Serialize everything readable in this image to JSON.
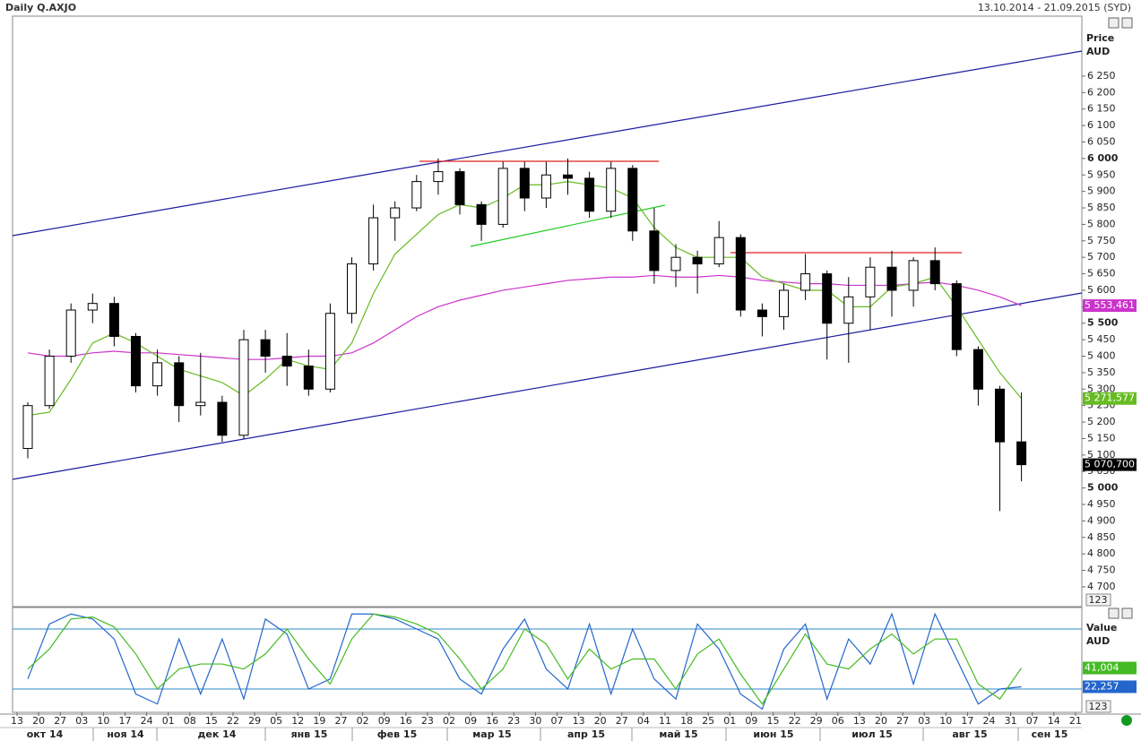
{
  "chart_data": [
    {
      "type": "candlestick",
      "title": "Daily Q.AXJO",
      "subtitle": "13.10.2014 - 21.09.2015 (SYD)",
      "y_label": "Price",
      "y_unit": "AUD",
      "y_button": "123",
      "categories": [
        "13",
        "20",
        "27",
        "03",
        "10",
        "17",
        "24",
        "01",
        "08",
        "15",
        "22",
        "29",
        "05",
        "12",
        "19",
        "27",
        "02",
        "09",
        "16",
        "23",
        "02",
        "09",
        "16",
        "23",
        "30",
        "07",
        "13",
        "20",
        "27",
        "04",
        "11",
        "18",
        "25",
        "01",
        "09",
        "15",
        "22",
        "29",
        "06",
        "13",
        "20",
        "27",
        "03",
        "10",
        "17",
        "24",
        "31",
        "07",
        "14",
        "21"
      ],
      "months": [
        "окт 14",
        "ноя 14",
        "дек 14",
        "янв 15",
        "фев 15",
        "мар 15",
        "апр 15",
        "май 15",
        "июн 15",
        "июл 15",
        "авг 15",
        "сен 15"
      ],
      "open": [
        5120,
        5250,
        5400,
        5540,
        5560,
        5460,
        5310,
        5380,
        5250,
        5260,
        5160,
        5450,
        5400,
        5370,
        5300,
        5530,
        5680,
        5820,
        5850,
        5930,
        5960,
        5860,
        5800,
        5970,
        5880,
        5950,
        5940,
        5840,
        5970,
        5780,
        5660,
        5700,
        5680,
        5760,
        5540,
        5520,
        5600,
        5650,
        5500,
        5580,
        5670,
        5600,
        5690,
        5620,
        5420,
        5300,
        5140,
        null,
        null,
        null
      ],
      "high": [
        5260,
        5420,
        5560,
        5590,
        5580,
        5470,
        5420,
        5400,
        5410,
        5280,
        5480,
        5480,
        5470,
        5420,
        5560,
        5700,
        5860,
        5870,
        5950,
        6000,
        5970,
        5870,
        5990,
        5990,
        5990,
        6000,
        5960,
        5990,
        5980,
        5850,
        5740,
        5720,
        5810,
        5770,
        5560,
        5620,
        5710,
        5660,
        5640,
        5700,
        5720,
        5700,
        5730,
        5630,
        5430,
        5310,
        5290,
        null,
        null,
        null
      ],
      "low": [
        5090,
        5240,
        5380,
        5500,
        5430,
        5290,
        5280,
        5200,
        5220,
        5140,
        5150,
        5350,
        5310,
        5280,
        5290,
        5500,
        5660,
        5750,
        5840,
        5890,
        5830,
        5750,
        5790,
        5840,
        5850,
        5890,
        5820,
        5820,
        5750,
        5620,
        5610,
        5590,
        5670,
        5520,
        5460,
        5480,
        5570,
        5390,
        5380,
        5480,
        5520,
        5550,
        5600,
        5400,
        5250,
        4930,
        5020,
        null,
        null,
        null
      ],
      "close": [
        5250,
        5400,
        5540,
        5560,
        5460,
        5310,
        5380,
        5250,
        5260,
        5160,
        5450,
        5400,
        5370,
        5300,
        5530,
        5680,
        5820,
        5850,
        5930,
        5960,
        5860,
        5800,
        5970,
        5880,
        5950,
        5940,
        5840,
        5970,
        5780,
        5660,
        5700,
        5680,
        5760,
        5540,
        5520,
        5600,
        5650,
        5500,
        5580,
        5670,
        5600,
        5690,
        5620,
        5420,
        5300,
        5140,
        5070.7,
        null,
        null,
        null
      ],
      "close_labels": [
        null,
        null,
        null,
        null,
        null,
        null,
        null,
        null,
        null,
        null,
        null,
        null,
        null,
        null,
        null,
        null,
        null,
        null,
        null,
        null,
        null,
        null,
        null,
        null,
        null,
        null,
        null,
        null,
        null,
        null,
        null,
        null,
        null,
        null,
        null,
        null,
        null,
        null,
        null,
        null,
        null,
        null,
        null,
        null,
        null,
        null,
        "5 070,700",
        null,
        null,
        null
      ],
      "series": [
        {
          "color": "#cc33cc",
          "values": [
            5410,
            5400,
            5400,
            5410,
            5415,
            5410,
            5410,
            5405,
            5400,
            5395,
            5390,
            5390,
            5395,
            5400,
            5400,
            5410,
            5440,
            5480,
            5520,
            5550,
            5570,
            5585,
            5600,
            5610,
            5620,
            5630,
            5635,
            5640,
            5640,
            5645,
            5640,
            5640,
            5645,
            5640,
            5630,
            5625,
            5620,
            5620,
            5615,
            5615,
            5615,
            5620,
            5625,
            5615,
            5600,
            5580,
            5553.461,
            null,
            null,
            null
          ],
          "value_labels": [
            null,
            null,
            null,
            null,
            null,
            null,
            null,
            null,
            null,
            null,
            null,
            null,
            null,
            null,
            null,
            null,
            null,
            null,
            null,
            null,
            null,
            null,
            null,
            null,
            null,
            null,
            null,
            null,
            null,
            null,
            null,
            null,
            null,
            null,
            null,
            null,
            null,
            null,
            null,
            null,
            null,
            null,
            null,
            null,
            null,
            null,
            "5 553,461",
            null,
            null,
            null
          ]
        },
        {
          "color": "#66bb22",
          "values": [
            5220,
            5230,
            5330,
            5440,
            5470,
            5440,
            5400,
            5360,
            5340,
            5320,
            5280,
            5330,
            5390,
            5370,
            5360,
            5440,
            5590,
            5710,
            5770,
            5830,
            5860,
            5850,
            5880,
            5920,
            5920,
            5930,
            5920,
            5910,
            5880,
            5790,
            5730,
            5700,
            5700,
            5700,
            5640,
            5620,
            5600,
            5600,
            5550,
            5550,
            5610,
            5620,
            5640,
            5550,
            5450,
            5350,
            5271.577,
            null,
            null,
            null
          ],
          "value_labels": [
            null,
            null,
            null,
            null,
            null,
            null,
            null,
            null,
            null,
            null,
            null,
            null,
            null,
            null,
            null,
            null,
            null,
            null,
            null,
            null,
            null,
            null,
            null,
            null,
            null,
            null,
            null,
            null,
            null,
            null,
            null,
            null,
            null,
            null,
            null,
            null,
            null,
            null,
            null,
            null,
            null,
            null,
            null,
            null,
            null,
            null,
            "5 271,577",
            null,
            null,
            null
          ]
        }
      ],
      "ylim": [
        4640,
        6432
      ],
      "yticks": [
        {
          "value": 4700,
          "label": "4 700"
        },
        {
          "value": 4750,
          "label": "4 750"
        },
        {
          "value": 4800,
          "label": "4 800"
        },
        {
          "value": 4850,
          "label": "4 850"
        },
        {
          "value": 4900,
          "label": "4 900"
        },
        {
          "value": 4950,
          "label": "4 950"
        },
        {
          "value": 5000,
          "label": "5 000"
        },
        {
          "value": 5050,
          "label": "5 050"
        },
        {
          "value": 5100,
          "label": "5 100"
        },
        {
          "value": 5150,
          "label": "5 150"
        },
        {
          "value": 5200,
          "label": "5 200"
        },
        {
          "value": 5250,
          "label": "5 250"
        },
        {
          "value": 5300,
          "label": "5 300"
        },
        {
          "value": 5350,
          "label": "5 350"
        },
        {
          "value": 5400,
          "label": "5 400"
        },
        {
          "value": 5450,
          "label": "5 450"
        },
        {
          "value": 5500,
          "label": "5 500"
        },
        {
          "value": 5550,
          "label": "5 550"
        },
        {
          "value": 5600,
          "label": "5 600"
        },
        {
          "value": 5650,
          "label": "5 650"
        },
        {
          "value": 5700,
          "label": "5 700"
        },
        {
          "value": 5750,
          "label": "5 750"
        },
        {
          "value": 5800,
          "label": "5 800"
        },
        {
          "value": 5850,
          "label": "5 850"
        },
        {
          "value": 5900,
          "label": "5 900"
        },
        {
          "value": 5950,
          "label": "5 950"
        },
        {
          "value": 6000,
          "label": "6 000"
        },
        {
          "value": 6050,
          "label": "6 050"
        },
        {
          "value": 6100,
          "label": "6 100"
        },
        {
          "value": 6150,
          "label": "6 150"
        },
        {
          "value": 6200,
          "label": "6 200"
        },
        {
          "value": 6250,
          "label": "6 250"
        }
      ]
    },
    {
      "type": "line",
      "y_label": "Value",
      "y_unit": "AUD",
      "y_button": "123",
      "series": [
        {
          "color": "#2266cc",
          "values": [
            30,
            85,
            95,
            90,
            70,
            15,
            5,
            70,
            15,
            70,
            10,
            90,
            75,
            20,
            30,
            95,
            95,
            90,
            80,
            70,
            30,
            15,
            60,
            90,
            40,
            20,
            85,
            15,
            80,
            30,
            10,
            85,
            60,
            15,
            0,
            60,
            85,
            10,
            70,
            45,
            95,
            25,
            95,
            50,
            5,
            20,
            22.257,
            null,
            null,
            null
          ],
          "value_labels": [
            null,
            null,
            null,
            null,
            null,
            null,
            null,
            null,
            null,
            null,
            null,
            null,
            null,
            null,
            null,
            null,
            null,
            null,
            null,
            null,
            null,
            null,
            null,
            null,
            null,
            null,
            null,
            null,
            null,
            null,
            null,
            null,
            null,
            null,
            null,
            null,
            null,
            null,
            null,
            null,
            null,
            null,
            null,
            null,
            null,
            null,
            "22,257",
            null,
            null,
            null
          ]
        },
        {
          "color": "#44bb22",
          "values": [
            40,
            60,
            90,
            92,
            82,
            55,
            20,
            40,
            45,
            45,
            40,
            55,
            80,
            50,
            25,
            70,
            95,
            92,
            85,
            75,
            50,
            20,
            40,
            80,
            65,
            30,
            60,
            40,
            50,
            50,
            20,
            55,
            70,
            35,
            5,
            40,
            75,
            45,
            40,
            60,
            75,
            55,
            70,
            70,
            25,
            10,
            41.004,
            null,
            null,
            null
          ],
          "value_labels": [
            null,
            null,
            null,
            null,
            null,
            null,
            null,
            null,
            null,
            null,
            null,
            null,
            null,
            null,
            null,
            null,
            null,
            null,
            null,
            null,
            null,
            null,
            null,
            null,
            null,
            null,
            null,
            null,
            null,
            null,
            null,
            null,
            null,
            null,
            null,
            null,
            null,
            null,
            null,
            null,
            null,
            null,
            null,
            null,
            null,
            null,
            "41,004",
            null,
            null,
            null
          ]
        }
      ],
      "levels": [
        80,
        20
      ],
      "ylim": [
        -3.3,
        101.5
      ]
    }
  ]
}
